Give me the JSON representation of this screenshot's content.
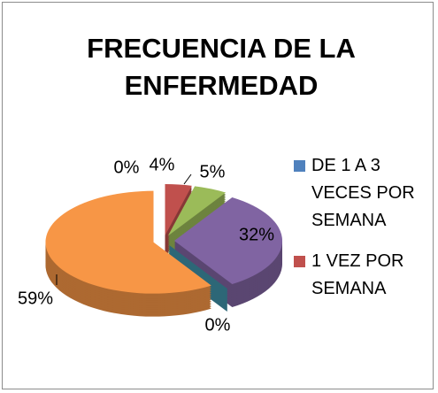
{
  "chart_data": {
    "type": "pie",
    "title": "FRECUENCIA DE LA ENFERMEDAD",
    "categories": [
      "DE 1 A 3 VECES POR SEMANA",
      "1 VEZ POR SEMANA",
      null,
      null,
      null,
      null
    ],
    "values": [
      0,
      4,
      5,
      32,
      0,
      59
    ],
    "value_labels": [
      "0%",
      "4%",
      "5%",
      "32%",
      "0%",
      "59%"
    ],
    "colors": [
      "#4f81bd",
      "#c0504d",
      "#9bbb59",
      "#8064a2",
      "#4bacc6",
      "#f79646"
    ],
    "legend": "right"
  }
}
